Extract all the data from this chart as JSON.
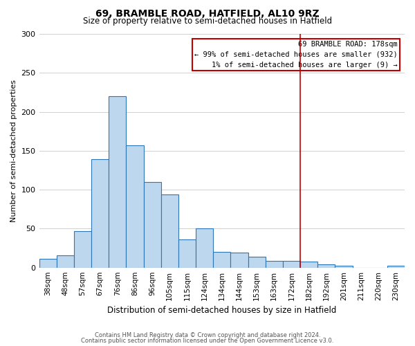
{
  "title": "69, BRAMBLE ROAD, HATFIELD, AL10 9RZ",
  "subtitle": "Size of property relative to semi-detached houses in Hatfield",
  "xlabel": "Distribution of semi-detached houses by size in Hatfield",
  "ylabel": "Number of semi-detached properties",
  "footnote1": "Contains HM Land Registry data © Crown copyright and database right 2024.",
  "footnote2": "Contains public sector information licensed under the Open Government Licence v3.0.",
  "bar_labels": [
    "38sqm",
    "48sqm",
    "57sqm",
    "67sqm",
    "76sqm",
    "86sqm",
    "96sqm",
    "105sqm",
    "115sqm",
    "124sqm",
    "134sqm",
    "144sqm",
    "153sqm",
    "163sqm",
    "172sqm",
    "182sqm",
    "192sqm",
    "201sqm",
    "211sqm",
    "220sqm",
    "230sqm"
  ],
  "bar_values": [
    11,
    16,
    47,
    139,
    220,
    157,
    110,
    94,
    36,
    50,
    20,
    19,
    14,
    9,
    9,
    8,
    4,
    2,
    0,
    0,
    2
  ],
  "bar_color": "#bdd7ee",
  "bar_edge_color": "#2e75b6",
  "property_line_label": "69 BRAMBLE ROAD: 178sqm",
  "annotation_line1": "← 99% of semi-detached houses are smaller (932)",
  "annotation_line2": "1% of semi-detached houses are larger (9) →",
  "annotation_box_color": "#ffffff",
  "annotation_box_edge": "#c00000",
  "line_bar_index": 15,
  "ylim": [
    0,
    300
  ],
  "yticks": [
    0,
    50,
    100,
    150,
    200,
    250,
    300
  ],
  "background_color": "#ffffff",
  "grid_color": "#d0d0d0"
}
